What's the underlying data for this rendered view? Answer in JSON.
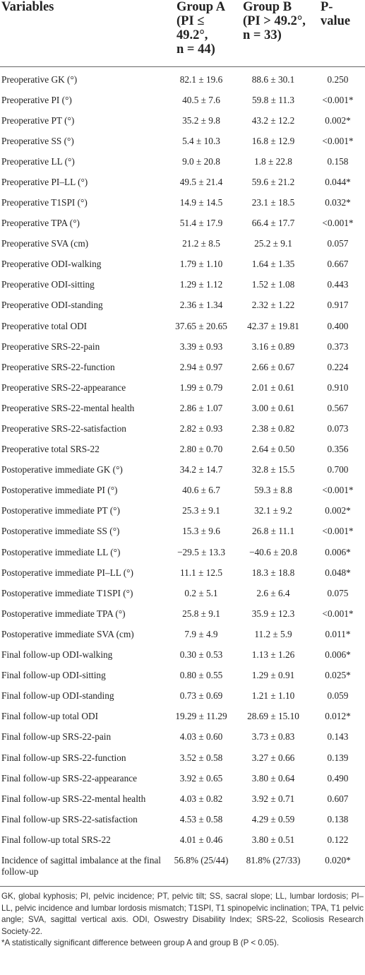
{
  "table": {
    "headers": {
      "variables": "Variables",
      "group_a": [
        "Group A",
        "(PI ≤ 49.2°,",
        "n = 44)"
      ],
      "group_b": [
        "Group B",
        "(PI > 49.2°,",
        "n = 33)"
      ],
      "p_value": [
        "P-",
        "value"
      ]
    },
    "rows": [
      {
        "variable": "Preoperative GK (°)",
        "group_a": "82.1 ± 19.6",
        "group_b": "88.6 ± 30.1",
        "p": "0.250"
      },
      {
        "variable": "Preoperative PI (°)",
        "group_a": "40.5 ± 7.6",
        "group_b": "59.8 ± 11.3",
        "p": "<0.001*"
      },
      {
        "variable": "Preoperative PT (°)",
        "group_a": "35.2 ± 9.8",
        "group_b": "43.2 ± 12.2",
        "p": "0.002*"
      },
      {
        "variable": "Preoperative SS (°)",
        "group_a": "5.4 ± 10.3",
        "group_b": "16.8 ± 12.9",
        "p": "<0.001*"
      },
      {
        "variable": "Preoperative LL (°)",
        "group_a": "9.0 ± 20.8",
        "group_b": "1.8 ± 22.8",
        "p": "0.158"
      },
      {
        "variable": "Preoperative PI–LL (°)",
        "group_a": "49.5 ± 21.4",
        "group_b": "59.6 ± 21.2",
        "p": "0.044*"
      },
      {
        "variable": "Preoperative T1SPI (°)",
        "group_a": "14.9 ± 14.5",
        "group_b": "23.1 ± 18.5",
        "p": "0.032*"
      },
      {
        "variable": "Preoperative TPA (°)",
        "group_a": "51.4 ± 17.9",
        "group_b": "66.4 ± 17.7",
        "p": "<0.001*"
      },
      {
        "variable": "Preoperative SVA (cm)",
        "group_a": "21.2 ± 8.5",
        "group_b": "25.2 ± 9.1",
        "p": "0.057"
      },
      {
        "variable": "Preoperative ODI-walking",
        "group_a": "1.79 ± 1.10",
        "group_b": "1.64 ± 1.35",
        "p": "0.667"
      },
      {
        "variable": "Preoperative ODI-sitting",
        "group_a": "1.29 ± 1.12",
        "group_b": "1.52 ± 1.08",
        "p": "0.443"
      },
      {
        "variable": "Preoperative ODI-standing",
        "group_a": "2.36 ± 1.34",
        "group_b": "2.32 ± 1.22",
        "p": "0.917"
      },
      {
        "variable": "Preoperative total ODI",
        "group_a": "37.65 ± 20.65",
        "group_b": "42.37 ± 19.81",
        "p": "0.400"
      },
      {
        "variable": "Preoperative SRS-22-pain",
        "group_a": "3.39 ± 0.93",
        "group_b": "3.16 ± 0.89",
        "p": "0.373"
      },
      {
        "variable": "Preoperative SRS-22-function",
        "group_a": "2.94 ± 0.97",
        "group_b": "2.66 ± 0.67",
        "p": "0.224"
      },
      {
        "variable": "Preoperative SRS-22-appearance",
        "group_a": "1.99 ± 0.79",
        "group_b": "2.01 ± 0.61",
        "p": "0.910"
      },
      {
        "variable": "Preoperative SRS-22-mental health",
        "group_a": "2.86 ± 1.07",
        "group_b": "3.00 ± 0.61",
        "p": "0.567"
      },
      {
        "variable": "Preoperative SRS-22-satisfaction",
        "group_a": "2.82 ± 0.93",
        "group_b": "2.38 ± 0.82",
        "p": "0.073"
      },
      {
        "variable": "Preoperative total SRS-22",
        "group_a": "2.80 ± 0.70",
        "group_b": "2.64 ± 0.50",
        "p": "0.356"
      },
      {
        "variable": "Postoperative immediate GK (°)",
        "group_a": "34.2 ± 14.7",
        "group_b": "32.8 ± 15.5",
        "p": "0.700"
      },
      {
        "variable": "Postoperative immediate PI (°)",
        "group_a": "40.6 ± 6.7",
        "group_b": "59.3 ± 8.8",
        "p": "<0.001*"
      },
      {
        "variable": "Postoperative immediate PT (°)",
        "group_a": "25.3 ± 9.1",
        "group_b": "32.1 ± 9.2",
        "p": "0.002*"
      },
      {
        "variable": "Postoperative immediate SS (°)",
        "group_a": "15.3 ± 9.6",
        "group_b": "26.8 ± 11.1",
        "p": "<0.001*"
      },
      {
        "variable": "Postoperative immediate LL (°)",
        "group_a": "−29.5 ± 13.3",
        "group_b": "−40.6 ± 20.8",
        "p": "0.006*"
      },
      {
        "variable": "Postoperative immediate PI–LL (°)",
        "group_a": "11.1 ± 12.5",
        "group_b": "18.3 ± 18.8",
        "p": "0.048*"
      },
      {
        "variable": "Postoperative immediate T1SPI (°)",
        "group_a": "0.2 ± 5.1",
        "group_b": "2.6 ± 6.4",
        "p": "0.075"
      },
      {
        "variable": "Postoperative immediate TPA (°)",
        "group_a": "25.8 ± 9.1",
        "group_b": "35.9 ± 12.3",
        "p": "<0.001*"
      },
      {
        "variable": "Postoperative immediate SVA (cm)",
        "group_a": "7.9 ± 4.9",
        "group_b": "11.2 ± 5.9",
        "p": "0.011*"
      },
      {
        "variable": "Final follow-up ODI-walking",
        "group_a": "0.30 ± 0.53",
        "group_b": "1.13 ± 1.26",
        "p": "0.006*"
      },
      {
        "variable": "Final follow-up ODI-sitting",
        "group_a": "0.80 ± 0.55",
        "group_b": "1.29 ± 0.91",
        "p": "0.025*"
      },
      {
        "variable": "Final follow-up ODI-standing",
        "group_a": "0.73 ± 0.69",
        "group_b": "1.21 ± 1.10",
        "p": "0.059"
      },
      {
        "variable": "Final follow-up total ODI",
        "group_a": "19.29 ± 11.29",
        "group_b": "28.69 ± 15.10",
        "p": "0.012*"
      },
      {
        "variable": "Final follow-up SRS-22-pain",
        "group_a": "4.03 ± 0.60",
        "group_b": "3.73 ± 0.83",
        "p": "0.143"
      },
      {
        "variable": "Final follow-up SRS-22-function",
        "group_a": "3.52 ± 0.58",
        "group_b": "3.27 ± 0.66",
        "p": "0.139"
      },
      {
        "variable": "Final follow-up SRS-22-appearance",
        "group_a": "3.92 ± 0.65",
        "group_b": "3.80 ± 0.64",
        "p": "0.490"
      },
      {
        "variable": "Final follow-up SRS-22-mental health",
        "group_a": "4.03 ± 0.82",
        "group_b": "3.92 ± 0.71",
        "p": "0.607"
      },
      {
        "variable": "Final follow-up SRS-22-satisfaction",
        "group_a": "4.53 ± 0.58",
        "group_b": "4.29 ± 0.59",
        "p": "0.138"
      },
      {
        "variable": "Final follow-up total SRS-22",
        "group_a": "4.01 ± 0.46",
        "group_b": "3.80 ± 0.51",
        "p": "0.122"
      },
      {
        "variable": "Incidence of sagittal imbalance at the final follow-up",
        "group_a": "56.8% (25/44)",
        "group_b": "81.8% (27/33)",
        "p": "0.020*"
      }
    ]
  },
  "footnotes": {
    "abbreviations": "GK, global kyphosis; PI, pelvic incidence; PT, pelvic tilt; SS, sacral slope; LL, lumbar lordosis; PI–LL, pelvic incidence and lumbar lordosis mismatch; T1SPI, T1 spinopelvic inclination; TPA, T1 pelvic angle; SVA, sagittal vertical axis. ODI, Oswestry Disability Index; SRS-22, Scoliosis Research Society-22.",
    "significance": "*A statistically significant difference between group A and group B (P < 0.05)."
  }
}
